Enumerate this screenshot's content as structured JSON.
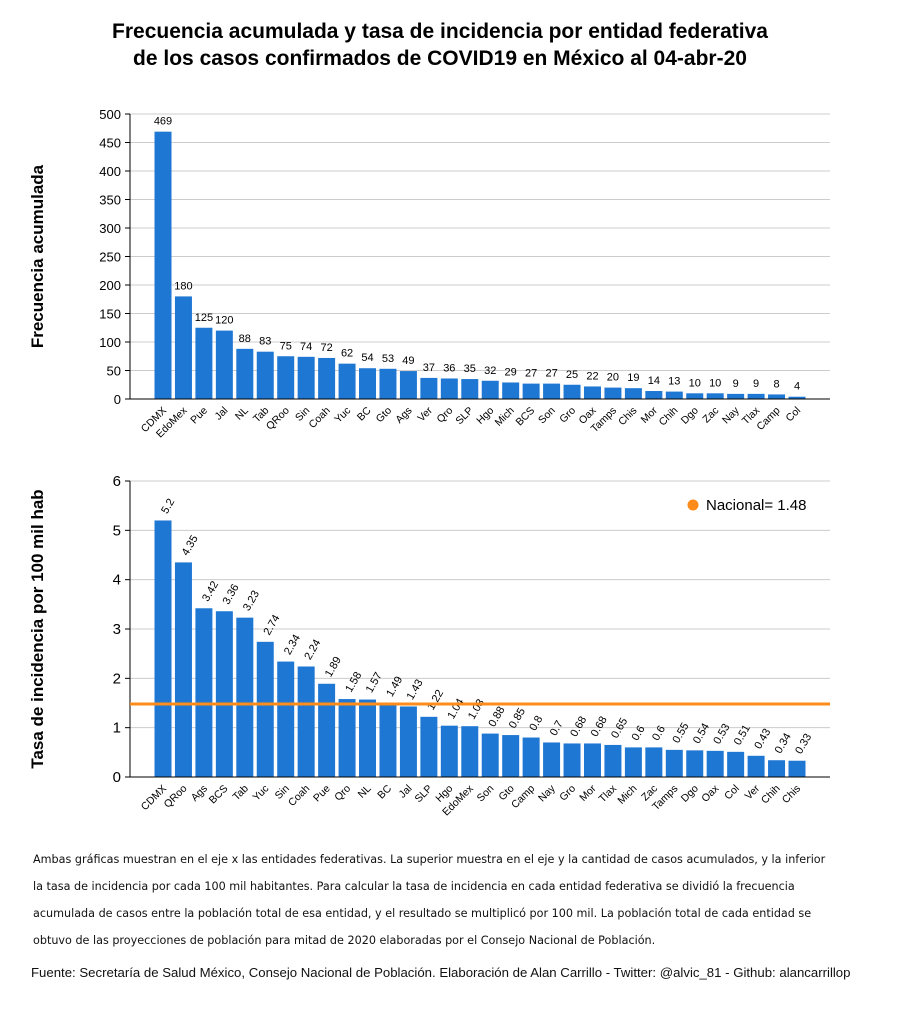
{
  "title": {
    "line1": "Frecuencia acumulada y tasa de incidencia por entidad federativa",
    "line2": "de los casos confirmados de COVID19 en México al 04-abr-20"
  },
  "colors": {
    "bar": "#1f77d4",
    "reference_line": "#ff8c1a",
    "grid": "#cccccc",
    "axis": "#000000"
  },
  "chart_data": [
    {
      "type": "bar",
      "ylabel": "Frecuencia acumulada",
      "ylim": [
        0,
        500
      ],
      "yticks": [
        0,
        50,
        100,
        150,
        200,
        250,
        300,
        350,
        400,
        450,
        500
      ],
      "grid": true,
      "categories": [
        "CDMX",
        "EdoMex",
        "Pue",
        "Jal",
        "NL",
        "Tab",
        "QRoo",
        "Sin",
        "Coah",
        "Yuc",
        "BC",
        "Gto",
        "Ags",
        "Ver",
        "Qro",
        "SLP",
        "Hgo",
        "Mich",
        "BCS",
        "Son",
        "Gro",
        "Oax",
        "Tamps",
        "Chis",
        "Mor",
        "Chih",
        "Dgo",
        "Zac",
        "Nay",
        "Tlax",
        "Camp",
        "Col"
      ],
      "values": [
        469,
        180,
        125,
        120,
        88,
        83,
        75,
        74,
        72,
        62,
        54,
        53,
        49,
        37,
        36,
        35,
        32,
        29,
        27,
        27,
        25,
        22,
        20,
        19,
        14,
        13,
        10,
        10,
        9,
        9,
        8,
        4
      ],
      "value_labels": [
        "469",
        "180",
        "125",
        "120",
        "88",
        "83",
        "75",
        "74",
        "72",
        "62",
        "54",
        "53",
        "49",
        "37",
        "36",
        "35",
        "32",
        "29",
        "27",
        "27",
        "25",
        "22",
        "20",
        "19",
        "14",
        "13",
        "10",
        "10",
        "9",
        "9",
        "8",
        "4"
      ]
    },
    {
      "type": "bar",
      "ylabel": "Tasa de incidencia por 100 mil hab",
      "ylim": [
        0,
        6
      ],
      "yticks": [
        0,
        1,
        2,
        3,
        4,
        5,
        6
      ],
      "grid": true,
      "categories": [
        "CDMX",
        "QRoo",
        "Ags",
        "BCS",
        "Tab",
        "Yuc",
        "Sin",
        "Coah",
        "Pue",
        "Qro",
        "NL",
        "BC",
        "Jal",
        "SLP",
        "Hgo",
        "EdoMex",
        "Son",
        "Gto",
        "Camp",
        "Nay",
        "Gro",
        "Mor",
        "Tlax",
        "Mich",
        "Zac",
        "Tamps",
        "Dgo",
        "Oax",
        "Col",
        "Ver",
        "Chih",
        "Chis"
      ],
      "values": [
        5.2,
        4.35,
        3.42,
        3.36,
        3.23,
        2.74,
        2.34,
        2.24,
        1.89,
        1.58,
        1.57,
        1.49,
        1.43,
        1.22,
        1.04,
        1.03,
        0.88,
        0.85,
        0.8,
        0.7,
        0.68,
        0.68,
        0.65,
        0.6,
        0.6,
        0.55,
        0.54,
        0.53,
        0.51,
        0.43,
        0.34,
        0.33
      ],
      "value_labels": [
        "5.2",
        "4.35",
        "3.42",
        "3.36",
        "3.23",
        "2.74",
        "2.34",
        "2.24",
        "1.89",
        "1.58",
        "1.57",
        "1.49",
        "1.43",
        "1.22",
        "1.04",
        "1.03",
        "0.88",
        "0.85",
        "0.8",
        "0.7",
        "0.68",
        "0.68",
        "0.65",
        "0.6",
        "0.6",
        "0.55",
        "0.54",
        "0.53",
        "0.51",
        "0.43",
        "0.34",
        "0.33"
      ],
      "reference_line": {
        "label": "Nacional= 1.48",
        "value": 1.48
      },
      "legend_position": "top-right"
    }
  ],
  "note": {
    "line1": "Ambas gráficas muestran en el eje x las entidades federativas. La superior muestra en el eje y la cantidad de casos acumulados, y la inferior",
    "line2": "la tasa de incidencia por cada 100 mil habitantes. Para calcular la tasa de incidencia en cada entidad federativa se dividió la frecuencia",
    "line3": "acumulada de casos entre la población total de esa entidad, y el resultado se multiplicó por 100 mil. La población total de cada entidad se",
    "line4": "obtuvo de las proyecciones de población para mitad de 2020 elaboradas por el Consejo Nacional de Población."
  },
  "source": "Fuente: Secretaría de Salud México, Consejo Nacional de Población. Elaboración de Alan Carrillo - Twitter: @alvic_81 - Github: alancarrillop"
}
